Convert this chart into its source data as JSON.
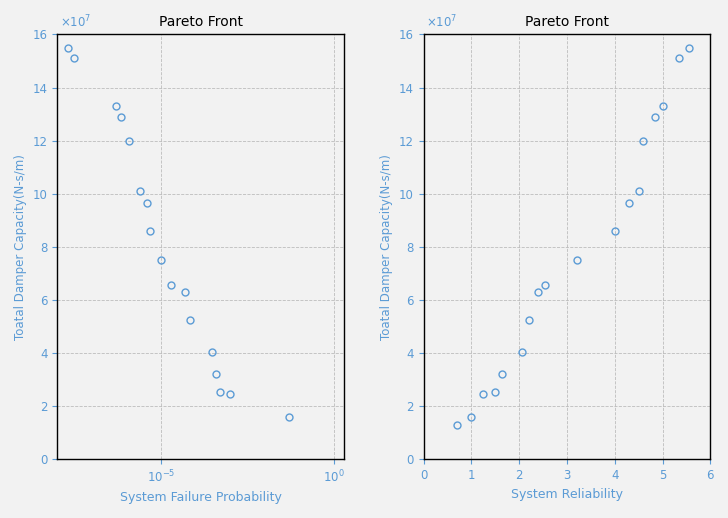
{
  "title": "Pareto Front",
  "ylabel": "Toatal Damper Capacity(N-s/m)",
  "xlabel1": "System Failure Probability",
  "xlabel2": "System Reliability",
  "marker_color": "#5B9BD5",
  "marker_facecolor": "none",
  "marker_style": "o",
  "marker_size": 5,
  "x_failure": [
    2e-08,
    3e-08,
    5e-07,
    7e-07,
    1.2e-06,
    2.5e-06,
    4e-06,
    5e-06,
    1e-05,
    2e-05,
    5e-05,
    7e-05,
    0.0003,
    0.0004,
    0.0005,
    0.001,
    0.05
  ],
  "y_failure": [
    15500000.0,
    15100000.0,
    13300000.0,
    12900000.0,
    12000000.0,
    10100000.0,
    9650000.0,
    8600000.0,
    7500000.0,
    6550000.0,
    6300000.0,
    5250000.0,
    4050000.0,
    3200000.0,
    2550000.0,
    2450000.0,
    1600000.0
  ],
  "x_reliability": [
    0.7,
    1.0,
    1.25,
    1.5,
    1.65,
    2.05,
    2.2,
    2.4,
    2.55,
    3.2,
    4.0,
    4.3,
    4.5,
    4.6,
    4.85,
    5.0,
    5.35,
    5.55
  ],
  "y_reliability": [
    1300000.0,
    1600000.0,
    2450000.0,
    2550000.0,
    3200000.0,
    4050000.0,
    5250000.0,
    6300000.0,
    6550000.0,
    7500000.0,
    8600000.0,
    9650000.0,
    10100000.0,
    12000000.0,
    12900000.0,
    13300000.0,
    15100000.0,
    15500000.0
  ],
  "ylim": [
    0,
    16000000.0
  ],
  "yticks": [
    0,
    2000000.0,
    4000000.0,
    6000000.0,
    8000000.0,
    10000000.0,
    12000000.0,
    14000000.0,
    16000000.0
  ],
  "xlim_fail": [
    1e-08,
    2.0
  ],
  "xlim_rel": [
    0,
    6
  ],
  "xticks_rel": [
    0,
    1,
    2,
    3,
    4,
    5,
    6
  ],
  "background": "#f2f2f2",
  "grid_color": "#b0b0b0",
  "grid_style": "--",
  "label_color": "#5B9BD5",
  "tick_color": "#5B9BD5",
  "spine_color": "#000000",
  "title_color": "#000000"
}
